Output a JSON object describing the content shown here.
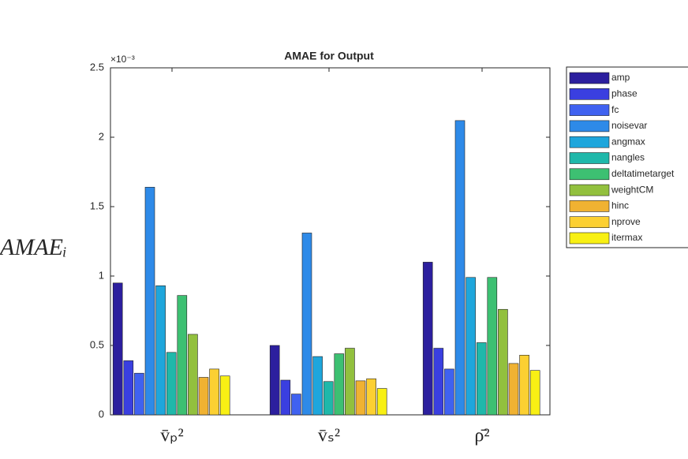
{
  "chart_data": {
    "type": "bar",
    "title": "AMAE for Output",
    "y_label": "AMAEᵢ",
    "y_exponent": "×10⁻³",
    "categories": [
      "v̄ₚ²",
      "v̄ₛ²",
      "ρ̄²"
    ],
    "ylim": [
      0,
      2.5
    ],
    "yticks": [
      0,
      0.5,
      1,
      1.5,
      2,
      2.5
    ],
    "series": [
      {
        "name": "amp",
        "color": "#2c1f9e",
        "values": [
          0.95,
          0.5,
          1.1
        ]
      },
      {
        "name": "phase",
        "color": "#3a3fe0",
        "values": [
          0.39,
          0.25,
          0.48
        ]
      },
      {
        "name": "fc",
        "color": "#4062f0",
        "values": [
          0.3,
          0.15,
          0.33
        ]
      },
      {
        "name": "noisevar",
        "color": "#2e8ae8",
        "values": [
          1.64,
          1.31,
          2.12
        ]
      },
      {
        "name": "angmax",
        "color": "#1ea6dc",
        "values": [
          0.93,
          0.42,
          0.99
        ]
      },
      {
        "name": "nangles",
        "color": "#1fb8aa",
        "values": [
          0.45,
          0.24,
          0.52
        ]
      },
      {
        "name": "deltatimetarget",
        "color": "#3dc072",
        "values": [
          0.86,
          0.44,
          0.99
        ]
      },
      {
        "name": "weightCM",
        "color": "#92c03e",
        "values": [
          0.58,
          0.48,
          0.76
        ]
      },
      {
        "name": "hinc",
        "color": "#f0b232",
        "values": [
          0.27,
          0.245,
          0.37
        ]
      },
      {
        "name": "nprove",
        "color": "#fcd032",
        "values": [
          0.33,
          0.26,
          0.43
        ]
      },
      {
        "name": "itermax",
        "color": "#f8f014",
        "values": [
          0.28,
          0.19,
          0.32
        ]
      }
    ]
  }
}
